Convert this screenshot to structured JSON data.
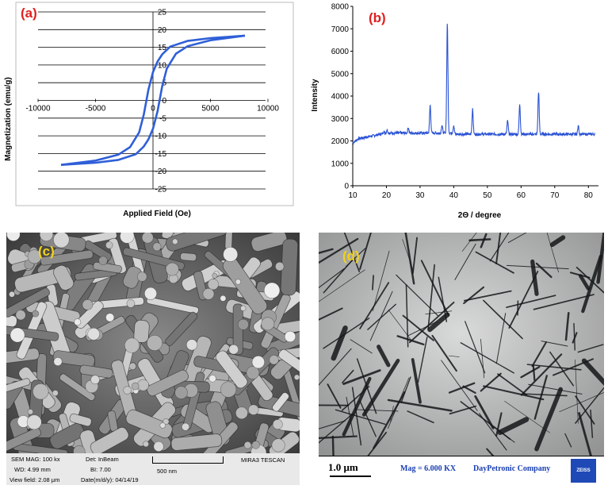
{
  "chart_data": [
    {
      "panel": "(a)",
      "type": "line",
      "xlabel": "Applied Field (Oe)",
      "ylabel": "Magnetization (emu/g)",
      "xlim": [
        -10000,
        10000
      ],
      "ylim": [
        -25,
        25
      ],
      "xticks": [
        "-10000",
        "-5000",
        "0",
        "5000",
        "10000"
      ],
      "yticks": [
        "25",
        "20",
        "15",
        "10",
        "5",
        "0",
        "-5",
        "-10",
        "-15",
        "-20",
        "-25"
      ],
      "grid": "horizontal",
      "color": "#2f5fd8",
      "series": [
        {
          "x": [
            -8000,
            -5000,
            -3000,
            -2000,
            -1200,
            -800,
            -400,
            0,
            400,
            800,
            1500,
            3000,
            5000,
            8000
          ],
          "y": [
            -18.2,
            -17,
            -15.3,
            -13.2,
            -9,
            -4,
            3,
            8,
            11,
            13,
            15.2,
            16.8,
            17.6,
            18.3
          ]
        },
        {
          "x": [
            8000,
            5000,
            3000,
            2000,
            1200,
            800,
            400,
            0,
            -400,
            -800,
            -1500,
            -3000,
            -5000,
            -8000
          ],
          "y": [
            18.3,
            17,
            15.3,
            13.2,
            9,
            4,
            -3,
            -8,
            -11,
            -13,
            -15.2,
            -16.8,
            -17.6,
            -18.2
          ]
        }
      ]
    },
    {
      "panel": "(b)",
      "type": "line",
      "xlabel": "2Θ / degree",
      "ylabel": "Intensity",
      "xlim": [
        10,
        83
      ],
      "ylim": [
        0,
        8000
      ],
      "xticks": [
        "10",
        "20",
        "30",
        "40",
        "50",
        "60",
        "70",
        "80"
      ],
      "yticks": [
        "0",
        "1000",
        "2000",
        "3000",
        "4000",
        "5000",
        "6000",
        "7000",
        "8000"
      ],
      "color": "#2a52d4",
      "peaks": [
        {
          "x": 19.2,
          "y": 2450
        },
        {
          "x": 20.2,
          "y": 2500
        },
        {
          "x": 26.5,
          "y": 2600
        },
        {
          "x": 33.0,
          "y": 3600
        },
        {
          "x": 36.5,
          "y": 2700
        },
        {
          "x": 38.1,
          "y": 7200
        },
        {
          "x": 40.0,
          "y": 2700
        },
        {
          "x": 45.6,
          "y": 3450
        },
        {
          "x": 56.0,
          "y": 2950
        },
        {
          "x": 59.6,
          "y": 3700
        },
        {
          "x": 65.2,
          "y": 4250
        },
        {
          "x": 77.0,
          "y": 2700
        }
      ]
    }
  ],
  "panel_c": {
    "label": "(c)",
    "sem_mag": "SEM MAG: 100 kx",
    "det": "Det: InBeam",
    "wd": "WD: 4.99 mm",
    "bi": "BI: 7.00",
    "view_field": "View field: 2.08 μm",
    "date": "Date(m/d/y): 04/14/19",
    "scale": "500 nm",
    "instrument": "MIRA3 TESCAN"
  },
  "panel_d": {
    "label": "(d)",
    "scale": "1.0 μm",
    "mag": "Mag = 6.000 KX",
    "company": "DayPetronic Company",
    "logo": "ZEISS"
  }
}
